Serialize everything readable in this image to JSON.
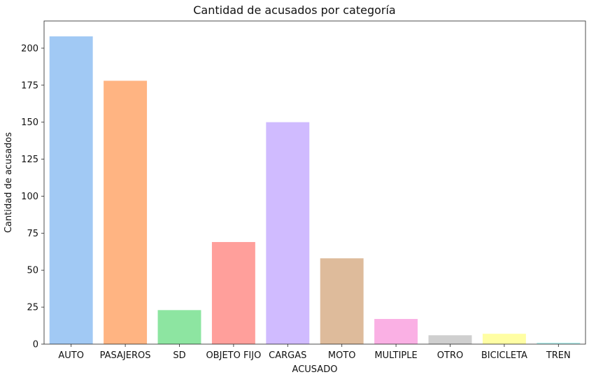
{
  "chart_data": {
    "type": "bar",
    "title": "Cantidad de acusados por categoría",
    "xlabel": "ACUSADO",
    "ylabel": "Cantidad de acusados",
    "categories": [
      "AUTO",
      "PASAJEROS",
      "SD",
      "OBJETO FIJO",
      "CARGAS",
      "MOTO",
      "MULTIPLE",
      "OTRO",
      "BICICLETA",
      "TREN"
    ],
    "values": [
      208,
      178,
      23,
      69,
      150,
      58,
      17,
      6,
      7,
      1
    ],
    "colors": [
      "#a1c9f4",
      "#ffb482",
      "#8de5a1",
      "#ff9f9b",
      "#d0bbff",
      "#debb9b",
      "#fab0e4",
      "#cfcfcf",
      "#fffea3",
      "#b9f2f0"
    ],
    "yticks": [
      0,
      25,
      50,
      75,
      100,
      125,
      150,
      175,
      200
    ],
    "ylim": [
      0,
      218.4
    ],
    "grid": false,
    "legend": "none"
  }
}
